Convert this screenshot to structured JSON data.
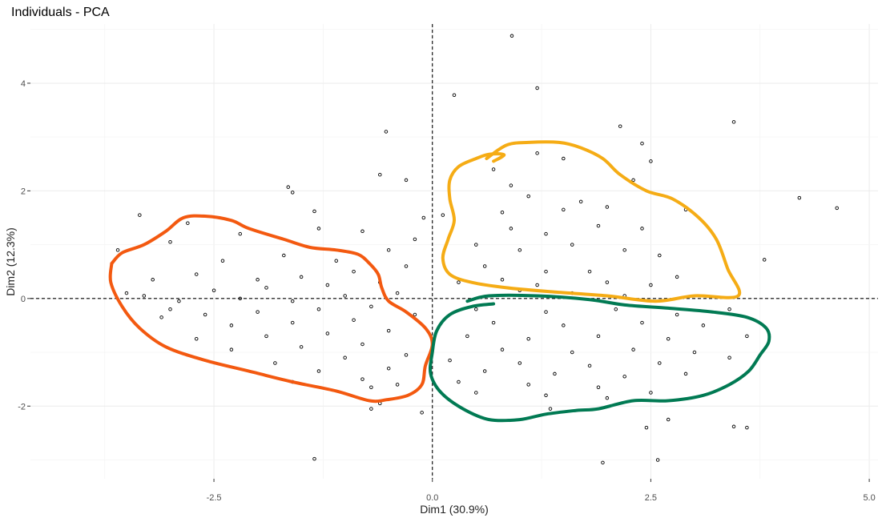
{
  "chart_data": {
    "type": "scatter",
    "title": "Individuals - PCA",
    "xlabel": "Dim1 (30.9%)",
    "ylabel": "Dim2 (12.3%)",
    "xlim": [
      -4.6,
      5.1
    ],
    "ylim": [
      -3.35,
      5.1
    ],
    "xticks": [
      -2.5,
      0.0,
      2.5,
      5.0
    ],
    "xtick_labels": [
      "-2.5",
      "0.0",
      "2.5",
      "5.0"
    ],
    "yticks": [
      -2,
      0,
      2,
      4
    ],
    "ytick_labels": [
      "-2",
      "0",
      "2",
      "4"
    ],
    "grid": true,
    "reference_lines": {
      "x": 0,
      "y": 0,
      "style": "dashed"
    },
    "series": [
      {
        "points": [
          [
            0.91,
            4.88
          ],
          [
            1.2,
            3.91
          ],
          [
            0.25,
            3.78
          ],
          [
            3.45,
            3.28
          ],
          [
            2.15,
            3.2
          ],
          [
            -0.53,
            3.1
          ],
          [
            2.4,
            2.88
          ],
          [
            1.2,
            2.7
          ],
          [
            1.5,
            2.6
          ],
          [
            2.5,
            2.55
          ],
          [
            0.7,
            2.4
          ],
          [
            -0.6,
            2.3
          ],
          [
            2.3,
            2.2
          ],
          [
            -0.3,
            2.2
          ],
          [
            -1.65,
            2.07
          ],
          [
            -1.6,
            1.97
          ],
          [
            0.9,
            2.1
          ],
          [
            1.1,
            1.9
          ],
          [
            1.7,
            1.8
          ],
          [
            2.0,
            1.7
          ],
          [
            0.8,
            1.6
          ],
          [
            1.5,
            1.65
          ],
          [
            2.9,
            1.65
          ],
          [
            4.2,
            1.87
          ],
          [
            4.63,
            1.68
          ],
          [
            -1.35,
            1.62
          ],
          [
            -2.8,
            1.4
          ],
          [
            -3.35,
            1.55
          ],
          [
            -0.1,
            1.5
          ],
          [
            0.12,
            1.55
          ],
          [
            0.9,
            1.3
          ],
          [
            1.3,
            1.2
          ],
          [
            1.9,
            1.35
          ],
          [
            2.4,
            1.3
          ],
          [
            -0.8,
            1.25
          ],
          [
            -1.3,
            1.3
          ],
          [
            -2.2,
            1.2
          ],
          [
            -3.0,
            1.05
          ],
          [
            -0.2,
            1.1
          ],
          [
            0.5,
            1.0
          ],
          [
            1.0,
            0.9
          ],
          [
            1.6,
            1.0
          ],
          [
            2.2,
            0.9
          ],
          [
            2.6,
            0.8
          ],
          [
            3.8,
            0.72
          ],
          [
            -0.5,
            0.9
          ],
          [
            -1.1,
            0.7
          ],
          [
            -1.7,
            0.8
          ],
          [
            -2.4,
            0.7
          ],
          [
            -3.6,
            0.9
          ],
          [
            -0.3,
            0.6
          ],
          [
            0.6,
            0.6
          ],
          [
            1.3,
            0.5
          ],
          [
            1.8,
            0.5
          ],
          [
            2.8,
            0.4
          ],
          [
            -0.9,
            0.5
          ],
          [
            -1.5,
            0.4
          ],
          [
            -2.0,
            0.35
          ],
          [
            -2.7,
            0.45
          ],
          [
            -3.2,
            0.35
          ],
          [
            0.3,
            0.3
          ],
          [
            0.8,
            0.35
          ],
          [
            1.2,
            0.25
          ],
          [
            2.0,
            0.3
          ],
          [
            2.5,
            0.25
          ],
          [
            -0.6,
            0.3
          ],
          [
            -1.2,
            0.25
          ],
          [
            -1.9,
            0.2
          ],
          [
            -2.5,
            0.15
          ],
          [
            -3.5,
            0.1
          ],
          [
            -0.4,
            0.1
          ],
          [
            -1.0,
            0.05
          ],
          [
            -1.6,
            -0.05
          ],
          [
            -2.2,
            0.0
          ],
          [
            -2.9,
            -0.05
          ],
          [
            -3.3,
            0.05
          ],
          [
            1.0,
            0.15
          ],
          [
            1.6,
            0.1
          ],
          [
            2.2,
            0.05
          ],
          [
            -0.7,
            -0.15
          ],
          [
            -1.3,
            -0.2
          ],
          [
            -2.0,
            -0.25
          ],
          [
            -2.6,
            -0.3
          ],
          [
            -3.0,
            -0.2
          ],
          [
            0.5,
            -0.2
          ],
          [
            1.3,
            -0.25
          ],
          [
            2.1,
            -0.2
          ],
          [
            2.8,
            -0.3
          ],
          [
            3.4,
            -0.2
          ],
          [
            -0.2,
            -0.3
          ],
          [
            -0.9,
            -0.4
          ],
          [
            -1.6,
            -0.45
          ],
          [
            -2.3,
            -0.5
          ],
          [
            -3.1,
            -0.35
          ],
          [
            0.7,
            -0.45
          ],
          [
            1.5,
            -0.5
          ],
          [
            2.4,
            -0.45
          ],
          [
            3.1,
            -0.5
          ],
          [
            -0.5,
            -0.6
          ],
          [
            -1.2,
            -0.65
          ],
          [
            -1.9,
            -0.7
          ],
          [
            -2.7,
            -0.75
          ],
          [
            0.4,
            -0.7
          ],
          [
            1.1,
            -0.75
          ],
          [
            1.9,
            -0.7
          ],
          [
            2.7,
            -0.75
          ],
          [
            3.6,
            -0.7
          ],
          [
            -0.8,
            -0.85
          ],
          [
            -1.5,
            -0.9
          ],
          [
            -2.3,
            -0.95
          ],
          [
            0.8,
            -0.95
          ],
          [
            1.6,
            -1.0
          ],
          [
            2.3,
            -0.95
          ],
          [
            3.0,
            -1.0
          ],
          [
            3.4,
            -1.1
          ],
          [
            -0.3,
            -1.05
          ],
          [
            -1.0,
            -1.1
          ],
          [
            -1.8,
            -1.2
          ],
          [
            0.2,
            -1.15
          ],
          [
            1.0,
            -1.2
          ],
          [
            1.8,
            -1.25
          ],
          [
            2.6,
            -1.2
          ],
          [
            -0.5,
            -1.3
          ],
          [
            -1.3,
            -1.35
          ],
          [
            0.6,
            -1.35
          ],
          [
            1.4,
            -1.4
          ],
          [
            2.2,
            -1.45
          ],
          [
            2.9,
            -1.4
          ],
          [
            -0.8,
            -1.5
          ],
          [
            -1.6,
            -1.55
          ],
          [
            0.3,
            -1.55
          ],
          [
            1.1,
            -1.6
          ],
          [
            1.9,
            -1.65
          ],
          [
            -0.4,
            -1.6
          ],
          [
            -0.7,
            -1.65
          ],
          [
            0.5,
            -1.75
          ],
          [
            1.3,
            -1.8
          ],
          [
            2.0,
            -1.85
          ],
          [
            2.5,
            -1.75
          ],
          [
            -0.6,
            -1.95
          ],
          [
            -0.7,
            -2.05
          ],
          [
            -0.12,
            -2.12
          ],
          [
            1.35,
            -2.05
          ],
          [
            2.7,
            -2.25
          ],
          [
            2.45,
            -2.4
          ],
          [
            3.45,
            -2.38
          ],
          [
            3.6,
            -2.4
          ],
          [
            -1.35,
            -2.98
          ],
          [
            1.95,
            -3.05
          ],
          [
            2.58,
            -3.0
          ]
        ]
      }
    ],
    "annotations": [
      {
        "type": "hand-drawn-outline",
        "color": "#f35910",
        "points": [
          [
            -3.67,
            0.65
          ],
          [
            -3.55,
            0.85
          ],
          [
            -3.3,
            1.0
          ],
          [
            -3.05,
            1.25
          ],
          [
            -2.85,
            1.5
          ],
          [
            -2.6,
            1.53
          ],
          [
            -2.3,
            1.45
          ],
          [
            -2.1,
            1.3
          ],
          [
            -1.7,
            1.1
          ],
          [
            -1.4,
            0.95
          ],
          [
            -1.1,
            0.9
          ],
          [
            -0.85,
            0.82
          ],
          [
            -0.72,
            0.65
          ],
          [
            -0.62,
            0.45
          ],
          [
            -0.58,
            0.2
          ],
          [
            -0.5,
            -0.05
          ],
          [
            -0.3,
            -0.25
          ],
          [
            -0.08,
            -0.55
          ],
          [
            0.0,
            -0.85
          ],
          [
            -0.08,
            -1.25
          ],
          [
            -0.12,
            -1.6
          ],
          [
            -0.28,
            -1.8
          ],
          [
            -0.52,
            -1.88
          ],
          [
            -0.72,
            -1.9
          ],
          [
            -1.1,
            -1.72
          ],
          [
            -1.6,
            -1.55
          ],
          [
            -2.1,
            -1.35
          ],
          [
            -2.6,
            -1.15
          ],
          [
            -3.05,
            -0.9
          ],
          [
            -3.35,
            -0.55
          ],
          [
            -3.55,
            -0.15
          ],
          [
            -3.68,
            0.3
          ],
          [
            -3.67,
            0.65
          ]
        ]
      },
      {
        "type": "hand-drawn-outline",
        "color": "#f5ac15",
        "points": [
          [
            0.7,
            2.55
          ],
          [
            0.82,
            2.67
          ],
          [
            0.65,
            2.68
          ],
          [
            0.5,
            2.6
          ],
          [
            0.3,
            2.45
          ],
          [
            0.2,
            2.2
          ],
          [
            0.2,
            1.85
          ],
          [
            0.25,
            1.45
          ],
          [
            0.18,
            1.1
          ],
          [
            0.12,
            0.75
          ],
          [
            0.2,
            0.45
          ],
          [
            0.45,
            0.3
          ],
          [
            0.85,
            0.2
          ],
          [
            1.4,
            0.12
          ],
          [
            2.0,
            0.05
          ],
          [
            2.55,
            -0.05
          ],
          [
            3.0,
            0.05
          ],
          [
            3.5,
            0.05
          ],
          [
            3.38,
            0.55
          ],
          [
            3.25,
            1.1
          ],
          [
            3.05,
            1.5
          ],
          [
            2.75,
            1.85
          ],
          [
            2.45,
            2.0
          ],
          [
            2.15,
            2.3
          ],
          [
            1.95,
            2.6
          ],
          [
            1.7,
            2.8
          ],
          [
            1.45,
            2.9
          ],
          [
            1.1,
            2.9
          ],
          [
            0.85,
            2.85
          ],
          [
            0.62,
            2.6
          ]
        ]
      },
      {
        "type": "hand-drawn-outline",
        "color": "#017a53",
        "points": [
          [
            0.4,
            -0.05
          ],
          [
            0.65,
            0.05
          ],
          [
            1.2,
            0.05
          ],
          [
            1.8,
            -0.02
          ],
          [
            2.2,
            -0.12
          ],
          [
            2.7,
            -0.18
          ],
          [
            3.2,
            -0.25
          ],
          [
            3.6,
            -0.35
          ],
          [
            3.82,
            -0.55
          ],
          [
            3.85,
            -0.8
          ],
          [
            3.75,
            -1.05
          ],
          [
            3.62,
            -1.35
          ],
          [
            3.4,
            -1.6
          ],
          [
            3.1,
            -1.8
          ],
          [
            2.7,
            -1.9
          ],
          [
            2.3,
            -1.9
          ],
          [
            1.9,
            -2.05
          ],
          [
            1.65,
            -2.08
          ],
          [
            1.3,
            -2.15
          ],
          [
            1.0,
            -2.25
          ],
          [
            0.65,
            -2.25
          ],
          [
            0.35,
            -2.05
          ],
          [
            0.1,
            -1.75
          ],
          [
            -0.02,
            -1.4
          ],
          [
            0.0,
            -1.0
          ],
          [
            0.05,
            -0.6
          ],
          [
            0.2,
            -0.3
          ],
          [
            0.45,
            -0.15
          ],
          [
            0.7,
            -0.1
          ]
        ]
      }
    ]
  }
}
